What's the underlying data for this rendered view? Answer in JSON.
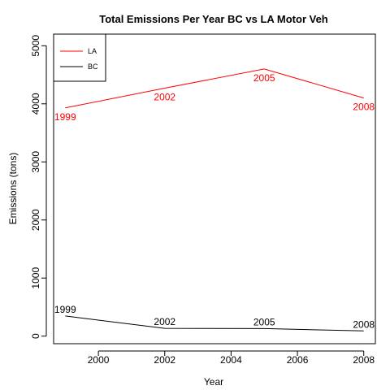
{
  "chart_data": {
    "type": "line",
    "title": "Total Emissions Per Year BC vs LA Motor Veh",
    "xlabel": "Year",
    "ylabel": "Emissions (tons)",
    "x": [
      1999,
      2002,
      2005,
      2008
    ],
    "xticks": [
      2000,
      2002,
      2004,
      2006,
      2008
    ],
    "yticks": [
      0,
      1000,
      2000,
      3000,
      4000,
      5000
    ],
    "xlim": [
      1998.65,
      2008.35
    ],
    "ylim": [
      -130,
      5200
    ],
    "legend_position": "top-left",
    "series": [
      {
        "name": "LA",
        "color": "#ff0000",
        "values": [
          3930,
          4270,
          4600,
          4100
        ],
        "labels": [
          "1999",
          "2002",
          "2005",
          "2008"
        ]
      },
      {
        "name": "BC",
        "color": "#000000",
        "values": [
          347,
          134,
          130,
          89
        ],
        "labels": [
          "1999",
          "2002",
          "2005",
          "2008"
        ]
      }
    ]
  }
}
